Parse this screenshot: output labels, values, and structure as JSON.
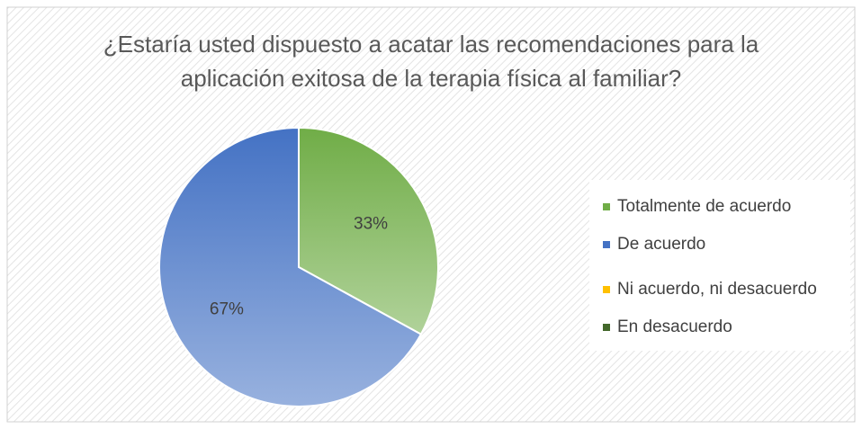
{
  "chart_data": {
    "type": "pie",
    "title": "¿Estaría usted dispuesto a acatar las recomendaciones para la aplicación exitosa de la terapia física al familiar?",
    "categories": [
      "Totalmente de acuerdo",
      "De acuerdo",
      "Ni acuerdo, ni desacuerdo",
      "En desacuerdo"
    ],
    "values": [
      33,
      67,
      0,
      0
    ],
    "value_labels": [
      "33%",
      "67%",
      null,
      null
    ],
    "colors": [
      "#70ad47",
      "#4472c4",
      "#ffc000",
      "#43682b"
    ],
    "legend": "right"
  }
}
